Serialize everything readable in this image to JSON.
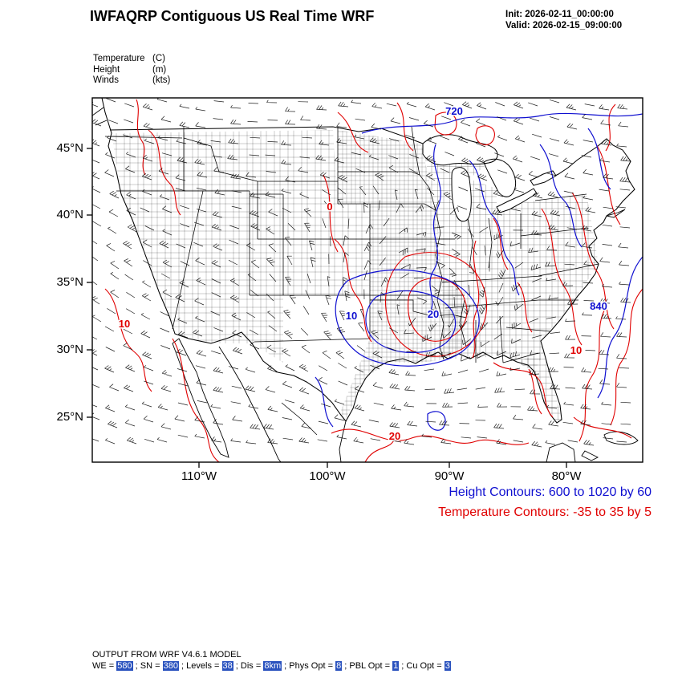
{
  "header": {
    "title": "IWFAQRP Contiguous US Real Time WRF",
    "init": "Init: 2026-02-11_00:00:00",
    "valid": "Valid: 2026-02-15_09:00:00"
  },
  "legend": {
    "rows": [
      {
        "name": "Temperature",
        "unit": "(C)"
      },
      {
        "name": "Height",
        "unit": "(m)"
      },
      {
        "name": "Winds",
        "unit": "(kts)"
      }
    ]
  },
  "contour_legend": {
    "height": "Height Contours: 600 to 1020 by 60",
    "temperature": "Temperature Contours: -35 to 35 by 5"
  },
  "footer": {
    "model_line": "OUTPUT FROM WRF V4.6.1 MODEL",
    "params": [
      {
        "text": "WE = ",
        "hl": false
      },
      {
        "text": "580",
        "hl": true
      },
      {
        "text": " ; SN = ",
        "hl": false
      },
      {
        "text": "380",
        "hl": true
      },
      {
        "text": " ; Levels = ",
        "hl": false
      },
      {
        "text": "38",
        "hl": true
      },
      {
        "text": " ; Dis = ",
        "hl": false
      },
      {
        "text": "8km",
        "hl": true
      },
      {
        "text": " ; Phys Opt = ",
        "hl": false
      },
      {
        "text": "8",
        "hl": true
      },
      {
        "text": " ; PBL Opt = ",
        "hl": false
      },
      {
        "text": "1",
        "hl": true
      },
      {
        "text": " ; Cu Opt = ",
        "hl": false
      },
      {
        "text": "3",
        "hl": true
      }
    ]
  },
  "chart_data": {
    "type": "map",
    "title": "IWFAQRP Contiguous US Real Time WRF",
    "region": "Contiguous US",
    "fields": [
      {
        "name": "Temperature",
        "units": "C",
        "color": "#e00000",
        "contours": "-35 to 35 by 5",
        "style": "red contour lines"
      },
      {
        "name": "Height",
        "units": "m",
        "color": "#0f0fd0",
        "contours": "600 to 1020 by 60",
        "style": "blue contour lines"
      },
      {
        "name": "Winds",
        "units": "kts",
        "color": "#000000",
        "style": "wind barbs"
      }
    ],
    "x_axis": {
      "label_type": "longitude",
      "ticks": [
        "110°W",
        "100°W",
        "90°W",
        "80°W"
      ]
    },
    "y_axis": {
      "label_type": "latitude",
      "ticks": [
        "45°N",
        "40°N",
        "35°N",
        "30°N",
        "25°N"
      ]
    },
    "contour_labels": [
      {
        "text": "720",
        "field": "height",
        "x": 0.657,
        "y": 0.046
      },
      {
        "text": "840",
        "field": "height",
        "x": 0.92,
        "y": 0.581
      },
      {
        "text": "20",
        "field": "height",
        "x": 0.62,
        "y": 0.603
      },
      {
        "text": "10",
        "field": "height",
        "x": 0.471,
        "y": 0.609
      },
      {
        "text": "10",
        "field": "temperature",
        "x": 0.058,
        "y": 0.631
      },
      {
        "text": "10",
        "field": "temperature",
        "x": 0.879,
        "y": 0.702
      },
      {
        "text": "20",
        "field": "temperature",
        "x": 0.55,
        "y": 0.938
      },
      {
        "text": "0",
        "field": "temperature",
        "x": 0.431,
        "y": 0.309
      }
    ]
  }
}
